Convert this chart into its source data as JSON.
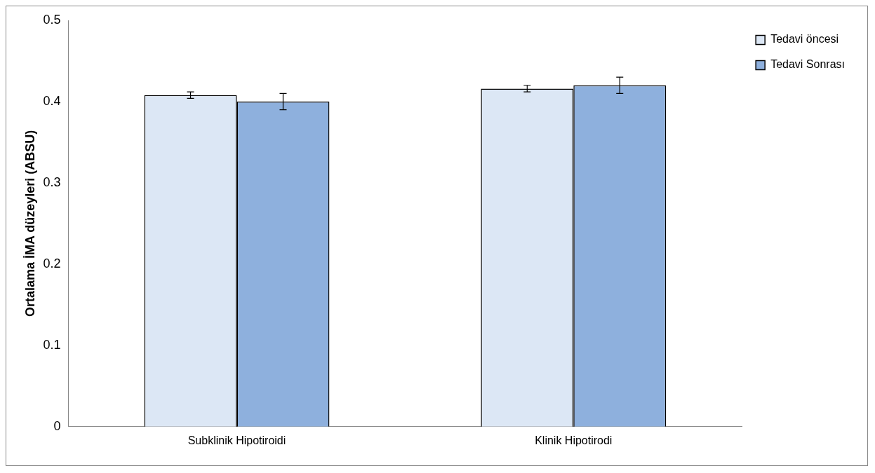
{
  "chart_data": {
    "type": "bar",
    "ylabel": "Ortalama İMA düzeyleri (ABSU)",
    "categories": [
      "Subklinik Hipotiroidi",
      "Klinik Hipotirodi"
    ],
    "series": [
      {
        "name": "Tedavi öncesi",
        "color": "#dce7f5",
        "values": [
          0.408,
          0.416
        ],
        "errors": [
          0.004,
          0.004
        ]
      },
      {
        "name": "Tedavi Sonrası",
        "color": "#8eb0dd",
        "values": [
          0.4,
          0.42
        ],
        "errors": [
          0.01,
          0.01
        ]
      }
    ],
    "ylim": [
      0,
      0.5
    ],
    "yticks": [
      0,
      0.1,
      0.2,
      0.3,
      0.4,
      0.5
    ],
    "grid": false,
    "legend": "top right"
  }
}
